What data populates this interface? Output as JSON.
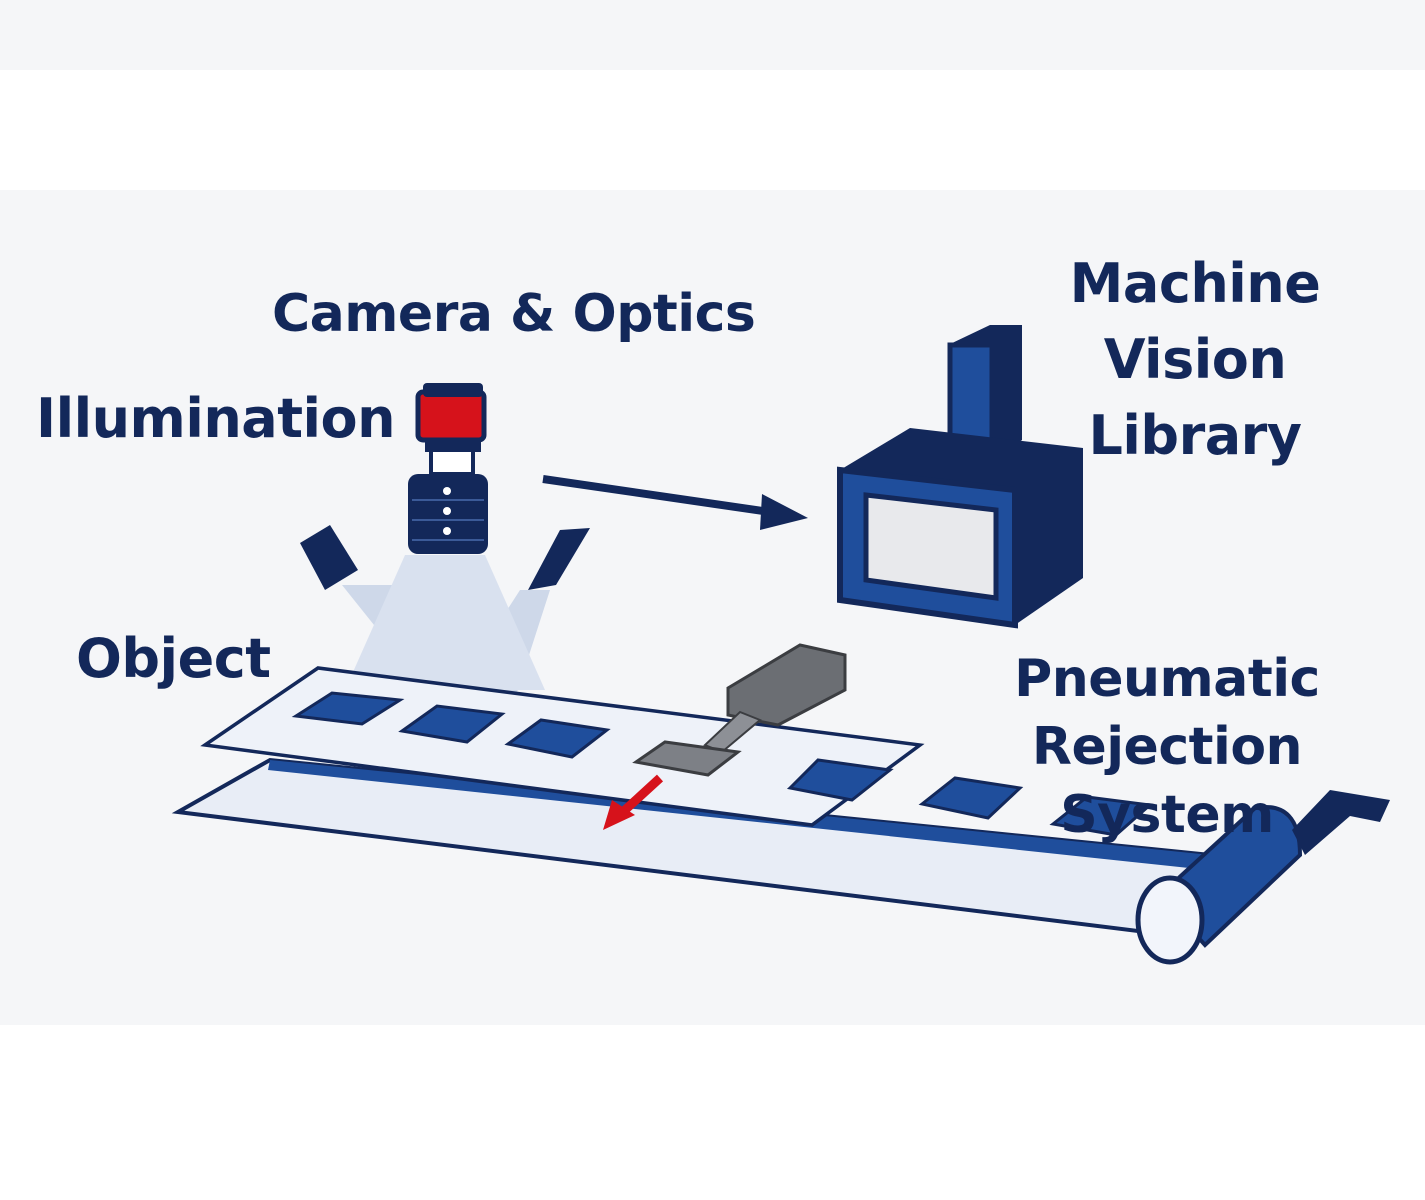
{
  "labels": {
    "camera_optics": "Camera & Optics",
    "illumination": "Illumination",
    "object": "Object",
    "machine_vision_library": [
      "Machine",
      "Vision",
      "Library"
    ],
    "pneumatic_rejection_system": [
      "Pneumatic",
      "Rejection System"
    ]
  },
  "colors": {
    "navy": "#13285a",
    "blue": "#1f4e9c",
    "red": "#d6121b",
    "gray": "#6b6e73",
    "belt_fill": "#e8edf6",
    "light_beam": "#9fb5d9"
  },
  "icons": [
    "camera-icon",
    "illumination-light-left-icon",
    "illumination-light-right-icon",
    "computer-icon",
    "pneumatic-cylinder-icon",
    "conveyor-belt",
    "reject-arrow-icon",
    "data-flow-arrow-icon"
  ]
}
